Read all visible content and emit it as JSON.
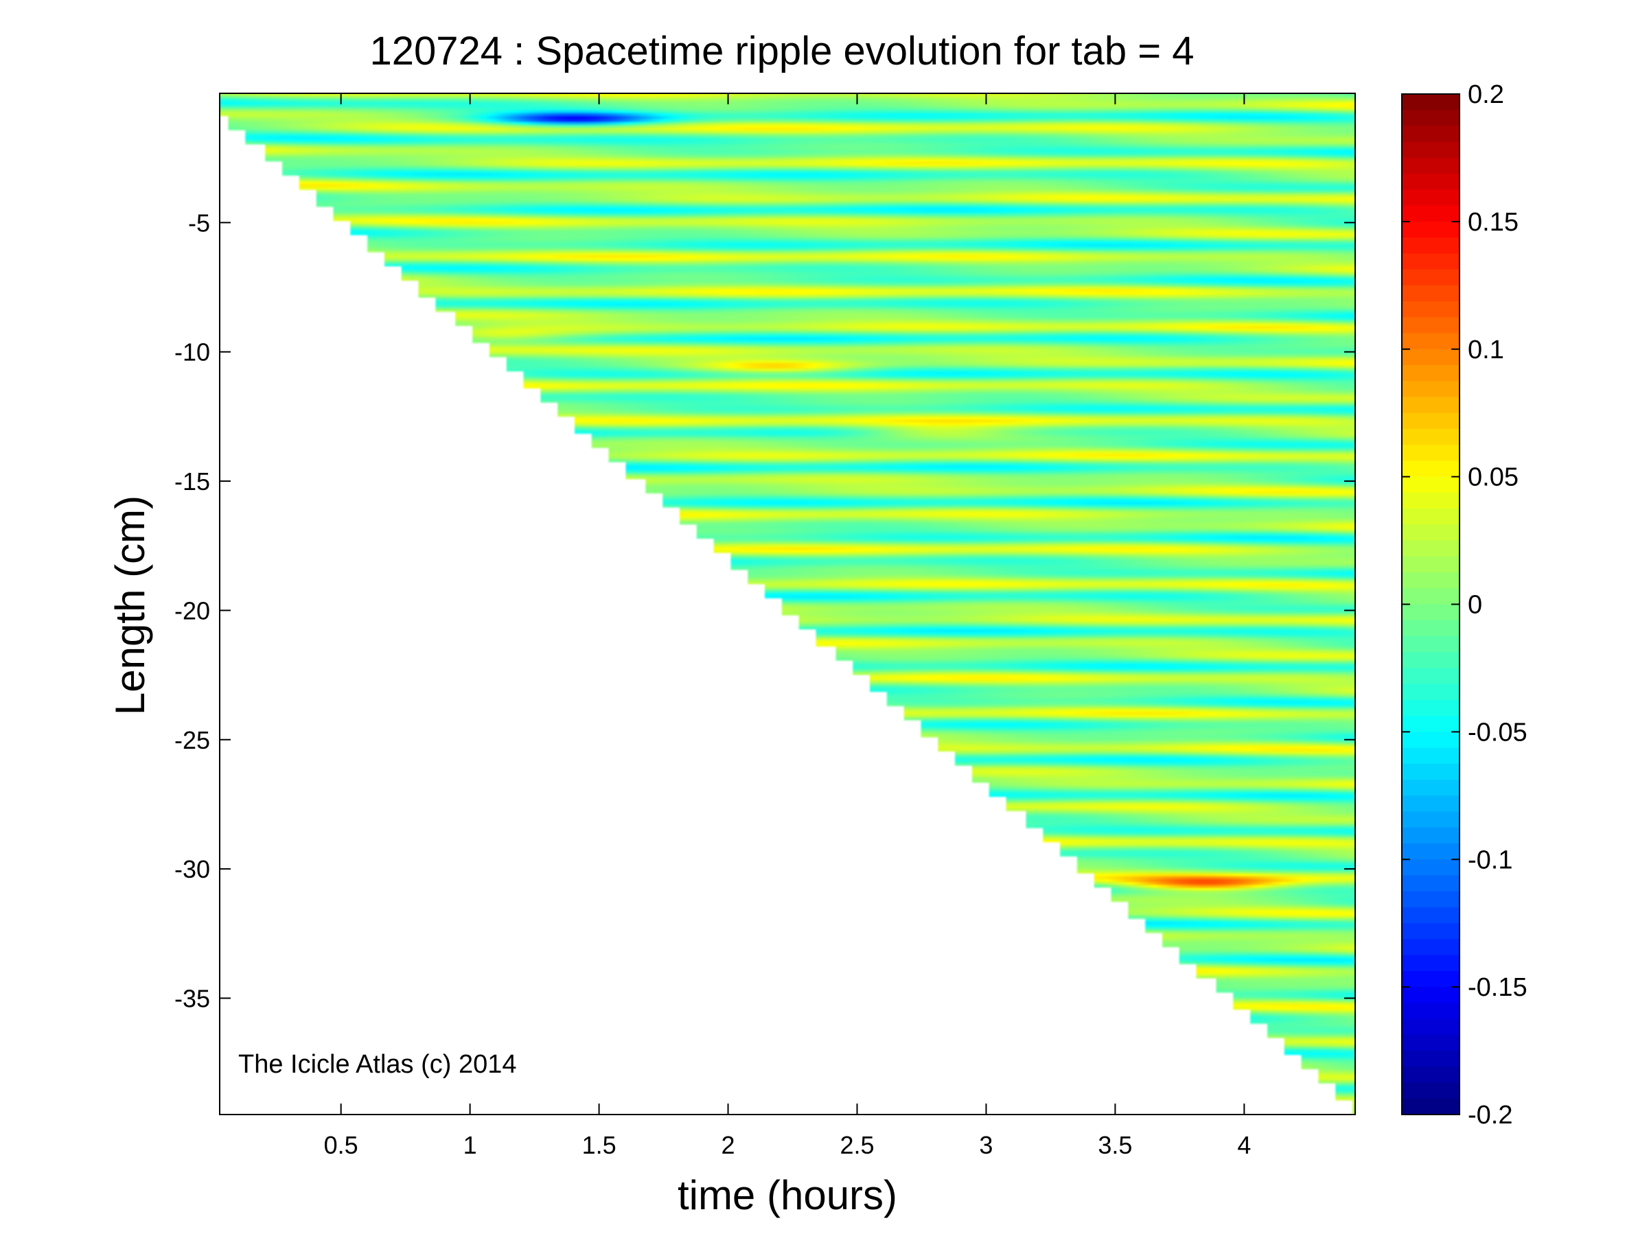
{
  "chart_data": {
    "type": "heatmap",
    "title": "120724 : Spacetime ripple evolution for tab = 4",
    "xlabel": "time (hours)",
    "ylabel": "Length (cm)",
    "xlim": [
      0.03,
      4.43
    ],
    "ylim": [
      -39.5,
      0.0
    ],
    "xticks": [
      0.5,
      1,
      1.5,
      2,
      2.5,
      3,
      3.5,
      4
    ],
    "xtick_labels": [
      "0.5",
      "1",
      "1.5",
      "2",
      "2.5",
      "3",
      "3.5",
      "4"
    ],
    "yticks": [
      -5,
      -10,
      -15,
      -20,
      -25,
      -30,
      -35
    ],
    "ytick_labels": [
      "-5",
      "-10",
      "-15",
      "-20",
      "-25",
      "-30",
      "-35"
    ],
    "grid": false,
    "colormap": "jet",
    "clim": [
      -0.2,
      0.2
    ],
    "colorbar_ticks": [
      0.2,
      0.15,
      0.1,
      0.05,
      0,
      -0.05,
      -0.1,
      -0.15,
      -0.2
    ],
    "colorbar_tick_labels": [
      "0.2",
      "0.15",
      "0.1",
      "0.05",
      "0",
      "-0.05",
      "-0.1",
      "-0.15",
      "-0.2"
    ],
    "colorbar_position": "right",
    "growth_front": {
      "t_start": 0.03,
      "length_start": -0.5,
      "t_end": 4.43,
      "length_end": -39.0
    },
    "dominant_value_range": [
      -0.05,
      0.05
    ],
    "strong_features": [
      {
        "t": 3.85,
        "length": -30.6,
        "value": 0.15
      },
      {
        "t": 2.2,
        "length": -10.6,
        "value": 0.1
      },
      {
        "t": 1.4,
        "length": -1.0,
        "value": -0.09
      },
      {
        "t": 1.1,
        "length": -9.4,
        "value": 0.1
      },
      {
        "t": 2.8,
        "length": -13.1,
        "value": 0.09
      }
    ],
    "annotation": "The Icicle Atlas (c) 2014"
  },
  "colors": {
    "background": "#ffffff",
    "axis": "#000000",
    "colormap_low": "#00008f",
    "colormap_mid": "#80ff80",
    "colormap_high": "#800000"
  }
}
